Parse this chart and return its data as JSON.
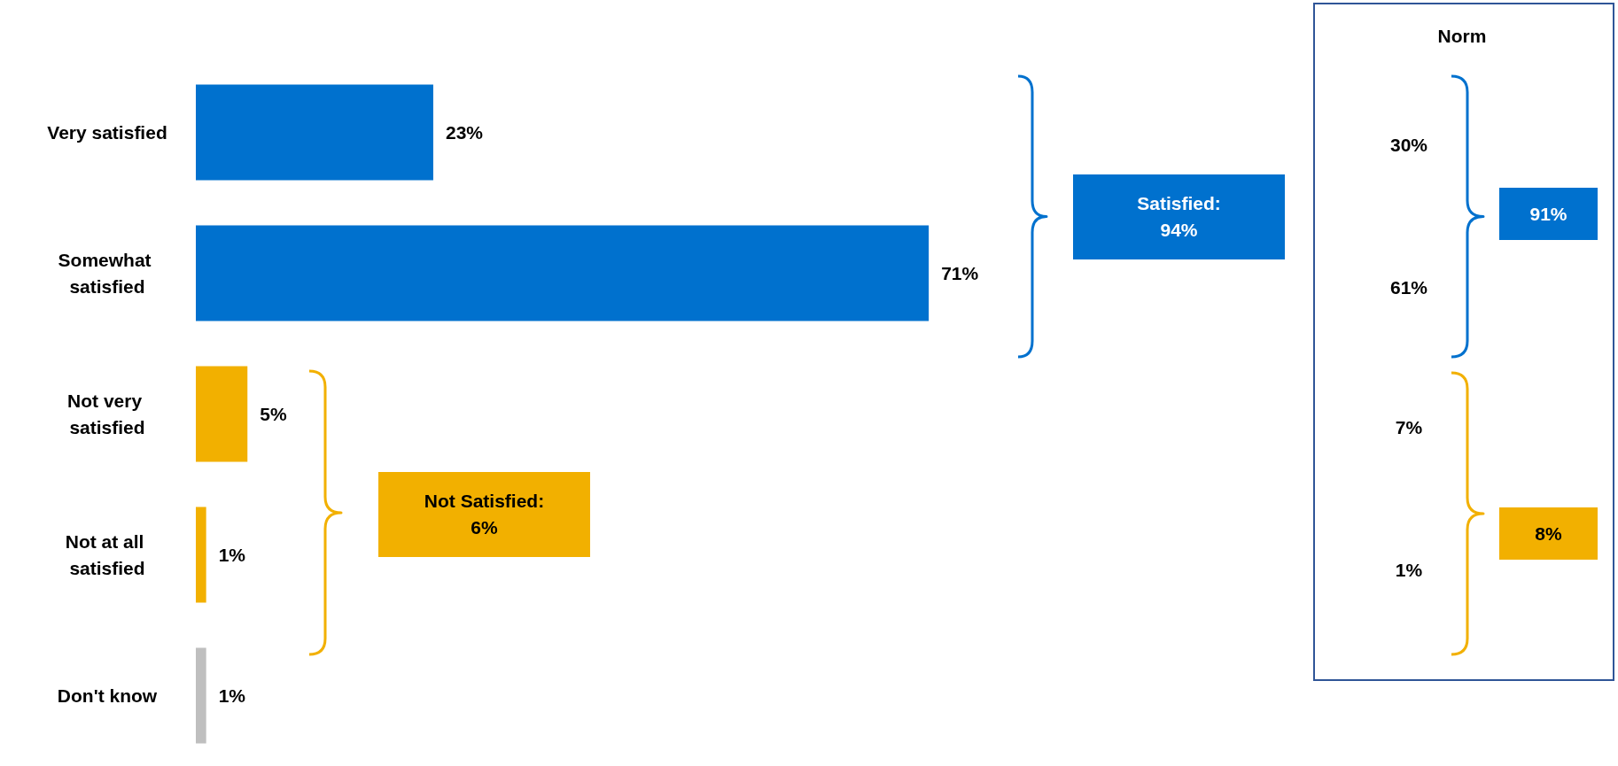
{
  "chart_data": {
    "type": "bar",
    "orientation": "horizontal",
    "categories": [
      "Very satisfied",
      "Somewhat satisfied",
      "Not very satisfied",
      "Not at all satisfied",
      "Don't know"
    ],
    "values": [
      23,
      71,
      5,
      1,
      1
    ],
    "colors": [
      "#0071ce",
      "#0071ce",
      "#f2b000",
      "#f2b000",
      "#bfbfbf"
    ],
    "value_labels": [
      "23%",
      "71%",
      "5%",
      "1%",
      "1%"
    ],
    "annotations": [
      "Satisfied:\n94%",
      "Not Satisfied:\n6%",
      "Norm",
      "30%",
      "61%",
      "7%",
      "1%",
      "91%",
      "8%"
    ]
  }
}
